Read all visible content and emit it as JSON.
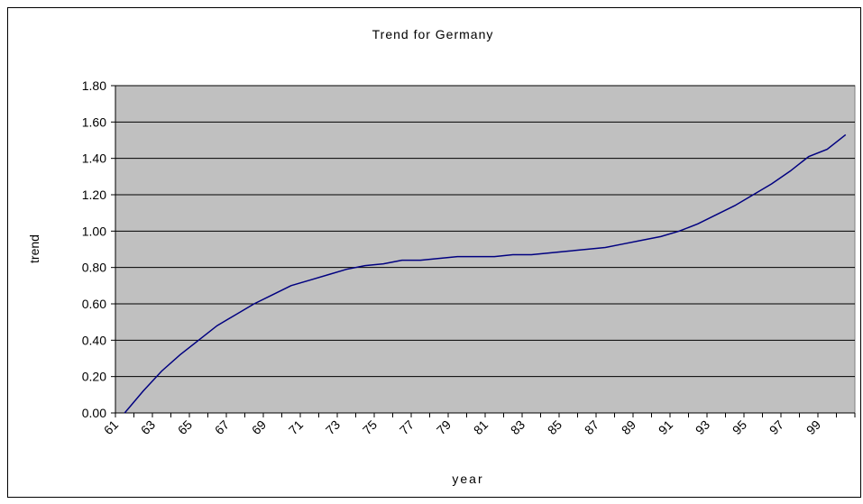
{
  "chart_data": {
    "type": "line",
    "title": "Trend for Germany",
    "x_label": "year",
    "y_label": "trend",
    "categories": [
      "61",
      null,
      "63",
      null,
      "65",
      null,
      "67",
      null,
      "69",
      null,
      "71",
      null,
      "73",
      null,
      "75",
      null,
      "77",
      null,
      "79",
      null,
      "81",
      null,
      "83",
      null,
      "85",
      null,
      "87",
      null,
      "89",
      null,
      "91",
      null,
      "93",
      null,
      "95",
      null,
      "97",
      null,
      "99",
      null
    ],
    "series": [
      {
        "name": "trend",
        "color": "#000080",
        "values": [
          0.0,
          0.12,
          0.23,
          0.32,
          0.4,
          0.48,
          0.54,
          0.6,
          0.65,
          0.7,
          0.73,
          0.76,
          0.79,
          0.81,
          0.82,
          0.84,
          0.84,
          0.85,
          0.86,
          0.86,
          0.86,
          0.87,
          0.87,
          0.88,
          0.89,
          0.9,
          0.91,
          0.93,
          0.95,
          0.97,
          1.0,
          1.04,
          1.09,
          1.14,
          1.2,
          1.26,
          1.33,
          1.41,
          1.45,
          1.53
        ]
      }
    ],
    "ylim": [
      0,
      1.8
    ],
    "yticks": [
      {
        "value": 0,
        "label": "0.00"
      },
      {
        "value": 0.2,
        "label": "0.20"
      },
      {
        "value": 0.4,
        "label": "0.40"
      },
      {
        "value": 0.6,
        "label": "0.60"
      },
      {
        "value": 0.8,
        "label": "0.80"
      },
      {
        "value": 1.0,
        "label": "1.00"
      },
      {
        "value": 1.2,
        "label": "1.20"
      },
      {
        "value": 1.4,
        "label": "1.40"
      },
      {
        "value": 1.6,
        "label": "1.60"
      },
      {
        "value": 1.8,
        "label": "1.80"
      }
    ],
    "grid": true,
    "plot_background": "#c0c0c0"
  }
}
